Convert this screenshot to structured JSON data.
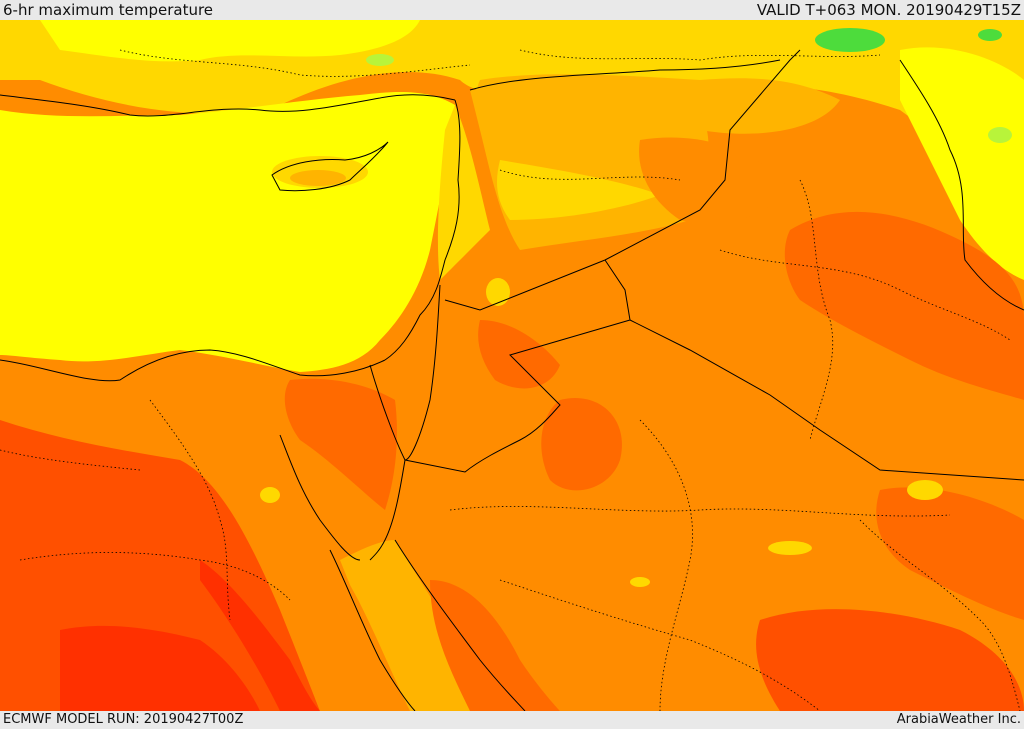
{
  "header": {
    "title": "6-hr maximum temperature",
    "valid_time": "VALID T+063 MON. 20190429T15Z"
  },
  "footer": {
    "model_run": "ECMWF MODEL RUN: 20190427T00Z",
    "credit": "ArabiaWeather Inc."
  },
  "map": {
    "type": "temperature-field",
    "colors": {
      "green": "#4ddc3c",
      "light_green": "#b8f43a",
      "yellow": "#ffff00",
      "yellow_orange": "#ffd800",
      "light_orange": "#ffb400",
      "orange": "#ff8c00",
      "dark_orange": "#ff6a00",
      "red_orange": "#ff5000",
      "red": "#ff3000",
      "border": "#000000"
    }
  }
}
